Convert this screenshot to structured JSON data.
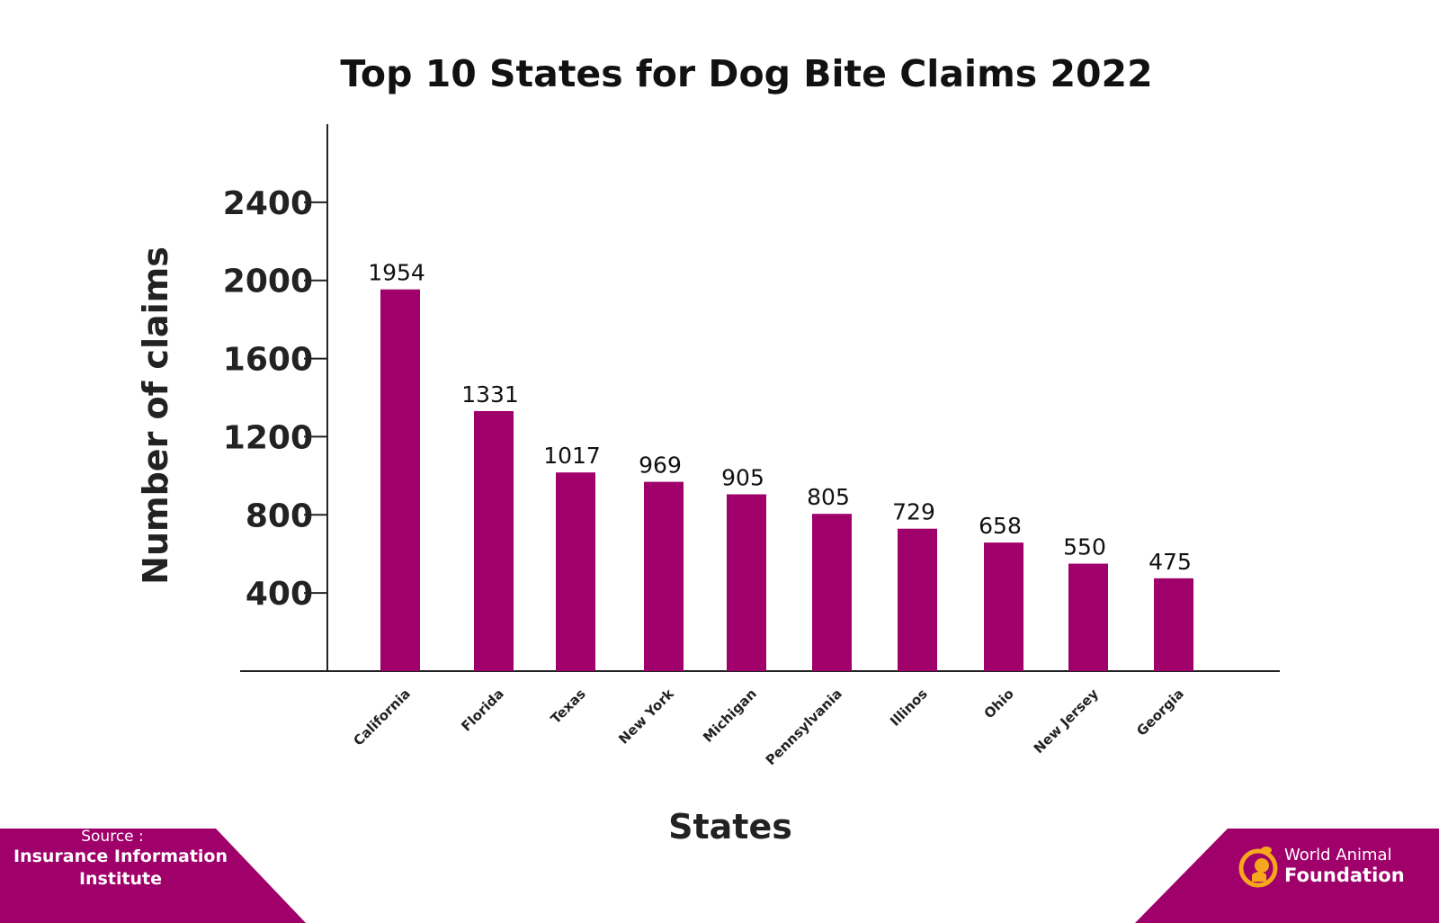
{
  "chart_data": {
    "type": "bar",
    "title": "Top 10 States for Dog Bite Claims 2022",
    "xlabel": "States",
    "ylabel": "Number of claims",
    "categories": [
      "California",
      "Florida",
      "Texas",
      "New York",
      "Michigan",
      "Pennsylvania",
      "Illinos",
      "Ohio",
      "New Jersey",
      "Georgia"
    ],
    "values": [
      1954,
      1331,
      1017,
      969,
      905,
      805,
      729,
      658,
      550,
      475
    ],
    "yticks": [
      400,
      800,
      1200,
      1600,
      2000,
      2400
    ],
    "ylim": [
      0,
      2800
    ],
    "grid": false,
    "bar_color": "#A0006A"
  },
  "footer": {
    "source_label": "Source :",
    "source_line1": "Insurance Information",
    "source_line2": "Institute",
    "logo_line1": "World Animal",
    "logo_line2": "Foundation",
    "accent_color": "#A0006A",
    "logo_color": "#F5A81C"
  }
}
